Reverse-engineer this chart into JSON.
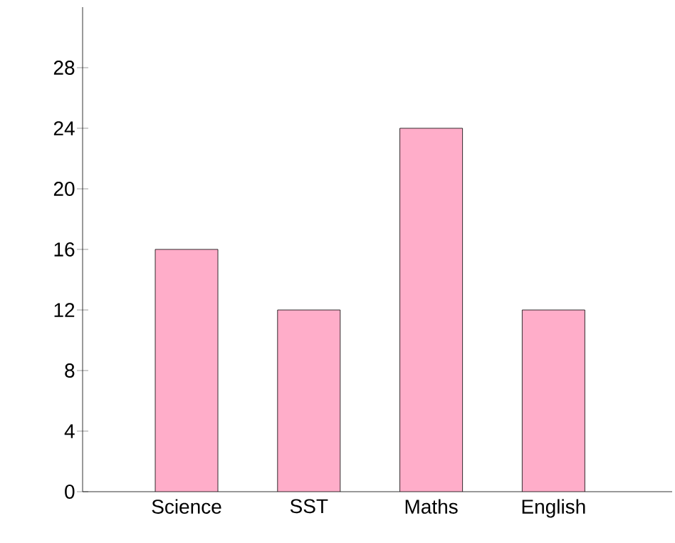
{
  "chart_data": {
    "type": "bar",
    "categories": [
      "Science",
      "SST",
      "Maths",
      "English"
    ],
    "values": [
      16,
      12,
      24,
      12
    ],
    "color": "#ffadc9",
    "ylim": [
      0,
      32
    ],
    "yticks": [
      0,
      4,
      8,
      12,
      16,
      20,
      24,
      28
    ],
    "grid": false
  }
}
